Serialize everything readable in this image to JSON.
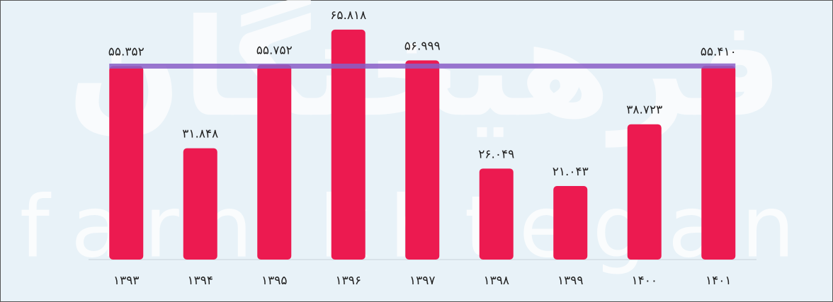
{
  "chart_data": {
    "type": "bar",
    "categories": [
      "۱۳۹۳",
      "۱۳۹۴",
      "۱۳۹۵",
      "۱۳۹۶",
      "۱۳۹۷",
      "۱۳۹۸",
      "۱۳۹۹",
      "۱۴۰۰",
      "۱۴۰۱"
    ],
    "values": [
      55.352,
      31.848,
      55.752,
      65.818,
      56.999,
      26.049,
      21.043,
      38.723,
      55.41
    ],
    "value_labels": [
      "۵۵.۳۵۲",
      "۳۱.۸۴۸",
      "۵۵.۷۵۲",
      "۶۵.۸۱۸",
      "۵۶.۹۹۹",
      "۲۶.۰۴۹",
      "۲۱.۰۴۳",
      "۳۸.۷۲۳",
      "۵۵.۴۱۰"
    ],
    "color": "#ec1a50",
    "reference_line_color": "#8a5fc7",
    "watermark": [
      "فرهیختگان",
      "farhikhtegan"
    ]
  }
}
